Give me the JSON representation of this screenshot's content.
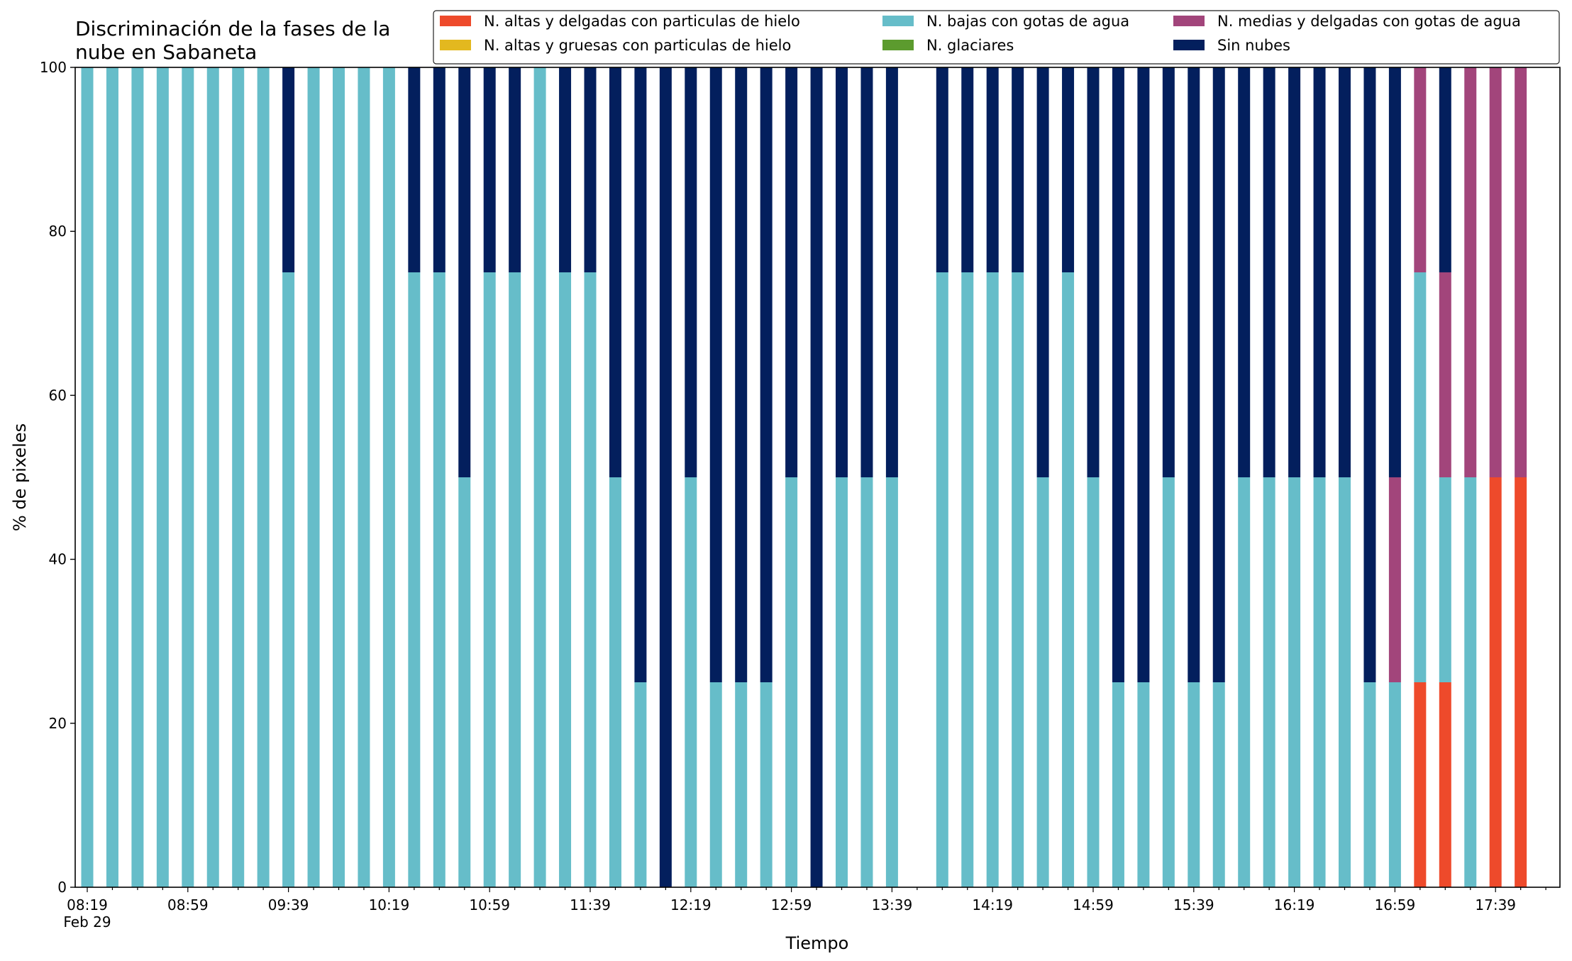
{
  "chart_data": {
    "type": "bar",
    "stacked": true,
    "title": "Discriminación de la fases de la\nnube en Sabaneta",
    "xlabel": "Tiempo",
    "ylabel": "% de pixeles",
    "ylim": [
      0,
      100
    ],
    "yticks": [
      0,
      20,
      40,
      60,
      80,
      100
    ],
    "xticks": [
      {
        "slot": 0,
        "label": "08:19",
        "sublabel": "Feb 29"
      },
      {
        "slot": 4,
        "label": "08:59"
      },
      {
        "slot": 8,
        "label": "09:39"
      },
      {
        "slot": 12,
        "label": "10:19"
      },
      {
        "slot": 16,
        "label": "10:59"
      },
      {
        "slot": 20,
        "label": "11:39"
      },
      {
        "slot": 24,
        "label": "12:19"
      },
      {
        "slot": 28,
        "label": "12:59"
      },
      {
        "slot": 32,
        "label": "13:39"
      },
      {
        "slot": 36,
        "label": "14:19"
      },
      {
        "slot": 40,
        "label": "14:59"
      },
      {
        "slot": 44,
        "label": "15:39"
      },
      {
        "slot": 48,
        "label": "16:19"
      },
      {
        "slot": 52,
        "label": "16:59"
      },
      {
        "slot": 56,
        "label": "17:39"
      }
    ],
    "x_start": "08:19",
    "x_step_minutes": 10,
    "slot_count": 59,
    "grid": false,
    "legend_position": "top",
    "series": [
      {
        "name": "N. altas y delgadas con particulas de hielo",
        "color": "#ee4a2b",
        "values": [
          0,
          0,
          0,
          0,
          0,
          0,
          0,
          0,
          0,
          0,
          0,
          0,
          0,
          0,
          0,
          0,
          0,
          0,
          0,
          0,
          0,
          0,
          0,
          0,
          0,
          0,
          0,
          0,
          0,
          0,
          0,
          0,
          0,
          null,
          0,
          0,
          0,
          0,
          0,
          0,
          0,
          0,
          0,
          0,
          0,
          0,
          0,
          0,
          0,
          0,
          0,
          0,
          0,
          25,
          25,
          0,
          50,
          50,
          null
        ]
      },
      {
        "name": "N. altas y gruesas con particulas de hielo",
        "color": "#e3b81f",
        "values": [
          0,
          0,
          0,
          0,
          0,
          0,
          0,
          0,
          0,
          0,
          0,
          0,
          0,
          0,
          0,
          0,
          0,
          0,
          0,
          0,
          0,
          0,
          0,
          0,
          0,
          0,
          0,
          0,
          0,
          0,
          0,
          0,
          0,
          null,
          0,
          0,
          0,
          0,
          0,
          0,
          0,
          0,
          0,
          0,
          0,
          0,
          0,
          0,
          0,
          0,
          0,
          0,
          0,
          0,
          0,
          0,
          0,
          0,
          null
        ]
      },
      {
        "name": "N. bajas con gotas de agua",
        "color": "#66bdc9",
        "values": [
          100,
          100,
          100,
          100,
          100,
          100,
          100,
          100,
          75,
          100,
          100,
          100,
          100,
          75,
          75,
          50,
          75,
          75,
          100,
          75,
          75,
          50,
          25,
          0,
          50,
          25,
          25,
          25,
          50,
          0,
          50,
          50,
          50,
          null,
          75,
          75,
          75,
          75,
          50,
          75,
          50,
          25,
          25,
          50,
          25,
          25,
          50,
          50,
          50,
          50,
          50,
          25,
          25,
          50,
          25,
          50,
          0,
          0,
          null
        ]
      },
      {
        "name": "N. glaciares",
        "color": "#5c9b2e",
        "values": [
          0,
          0,
          0,
          0,
          0,
          0,
          0,
          0,
          0,
          0,
          0,
          0,
          0,
          0,
          0,
          0,
          0,
          0,
          0,
          0,
          0,
          0,
          0,
          0,
          0,
          0,
          0,
          0,
          0,
          0,
          0,
          0,
          0,
          null,
          0,
          0,
          0,
          0,
          0,
          0,
          0,
          0,
          0,
          0,
          0,
          0,
          0,
          0,
          0,
          0,
          0,
          0,
          0,
          0,
          0,
          0,
          0,
          0,
          null
        ]
      },
      {
        "name": "N. medias y delgadas con gotas de agua",
        "color": "#a2457b",
        "values": [
          0,
          0,
          0,
          0,
          0,
          0,
          0,
          0,
          0,
          0,
          0,
          0,
          0,
          0,
          0,
          0,
          0,
          0,
          0,
          0,
          0,
          0,
          0,
          0,
          0,
          0,
          0,
          0,
          0,
          0,
          0,
          0,
          0,
          null,
          0,
          0,
          0,
          0,
          0,
          0,
          0,
          0,
          0,
          0,
          0,
          0,
          0,
          0,
          0,
          0,
          0,
          0,
          25,
          25,
          25,
          50,
          50,
          50,
          null
        ]
      },
      {
        "name": "Sin nubes",
        "color": "#031f5d",
        "values": [
          0,
          0,
          0,
          0,
          0,
          0,
          0,
          0,
          25,
          0,
          0,
          0,
          0,
          25,
          25,
          50,
          25,
          25,
          0,
          25,
          25,
          50,
          75,
          100,
          50,
          75,
          75,
          75,
          50,
          100,
          50,
          50,
          50,
          null,
          25,
          25,
          25,
          25,
          50,
          25,
          50,
          75,
          75,
          50,
          75,
          75,
          50,
          50,
          50,
          50,
          50,
          75,
          50,
          0,
          25,
          0,
          0,
          0,
          null
        ]
      }
    ]
  }
}
